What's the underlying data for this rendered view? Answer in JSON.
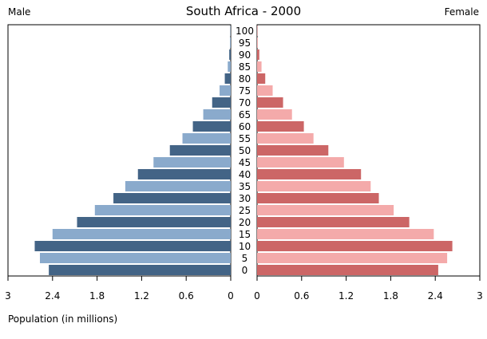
{
  "chart_data": {
    "type": "bar",
    "orientation": "horizontal",
    "layout": "population-pyramid",
    "title": "South Africa - 2000",
    "xlabel": "Population (in millions)",
    "male_label": "Male",
    "female_label": "Female",
    "xlim": [
      0,
      3
    ],
    "x_ticks": [
      "3",
      "2.4",
      "1.8",
      "1.2",
      "0.6",
      "0",
      "0",
      "0.6",
      "1.2",
      "1.8",
      "2.4",
      "3"
    ],
    "categories": [
      "0",
      "5",
      "10",
      "15",
      "20",
      "25",
      "30",
      "35",
      "40",
      "45",
      "50",
      "55",
      "60",
      "65",
      "70",
      "75",
      "80",
      "85",
      "90",
      "95",
      "100"
    ],
    "series": [
      {
        "name": "Male",
        "values": [
          2.45,
          2.57,
          2.64,
          2.4,
          2.07,
          1.83,
          1.58,
          1.42,
          1.25,
          1.04,
          0.82,
          0.65,
          0.51,
          0.37,
          0.25,
          0.15,
          0.08,
          0.04,
          0.02,
          0.01,
          0.005
        ]
      },
      {
        "name": "Female",
        "values": [
          2.44,
          2.56,
          2.63,
          2.38,
          2.05,
          1.84,
          1.64,
          1.53,
          1.4,
          1.17,
          0.96,
          0.76,
          0.63,
          0.47,
          0.35,
          0.21,
          0.11,
          0.06,
          0.03,
          0.01,
          0.005
        ]
      }
    ],
    "colors": {
      "male_dark": "#436486",
      "male_light": "#8aaacc",
      "female_dark": "#cc6666",
      "female_light": "#f4aaaa"
    },
    "grid": false
  }
}
